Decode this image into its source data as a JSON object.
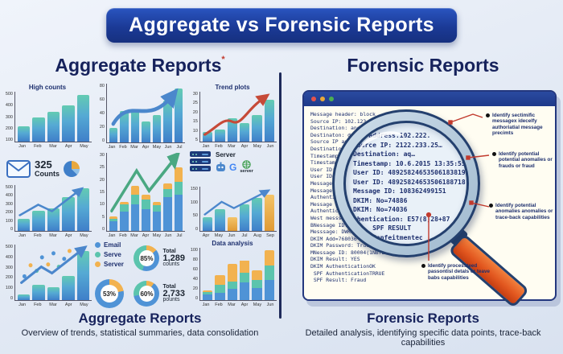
{
  "banner": {
    "title": "Aggregate vs Forensic Reports"
  },
  "left": {
    "heading": "Aggregate Reports",
    "heading_mark": "*",
    "stat": {
      "value": "325",
      "label": "Counts"
    },
    "server_panel": {
      "label_top": "Server",
      "label_bottom": "server"
    },
    "legend": [
      {
        "label": "Email",
        "color": "#4f93d6"
      },
      {
        "label": "Serve",
        "color": "#5bc4ad"
      },
      {
        "label": "Server",
        "color": "#f2b24f"
      }
    ],
    "donuts": [
      {
        "pct": "85%",
        "note_title": "Total",
        "note_value": "1,289",
        "note_unit": "counts"
      },
      {
        "pct": "53%"
      },
      {
        "pct": "60%",
        "note_title": "Total",
        "note_value": "2,733",
        "note_unit": "pounts"
      }
    ],
    "caption": {
      "title": "Aggregate Reports",
      "subtitle": "Overview of trends, statistical summaries, data consolidation"
    }
  },
  "chart_data": [
    {
      "type": "bar",
      "title": "High counts",
      "categories": [
        "Jan",
        "Feb",
        "Mar",
        "Apr",
        "May"
      ],
      "values": [
        160,
        250,
        310,
        375,
        490
      ],
      "yticks": [
        500,
        400,
        300,
        200,
        100
      ],
      "ymax": 520
    },
    {
      "type": "bar",
      "title": "",
      "categories": [
        "Jan",
        "Feb",
        "Mar",
        "Apr",
        "May",
        "Jun",
        "Jul"
      ],
      "values": [
        21,
        45,
        47,
        30,
        40,
        60,
        78
      ],
      "yticks": [
        80,
        60,
        40,
        20,
        0
      ],
      "ymax": 85,
      "overlay": "blue-arrow"
    },
    {
      "type": "bar",
      "title": "Trend plots",
      "categories": [
        "Jan",
        "Feb",
        "Mar",
        "Apr",
        "May",
        "Jun"
      ],
      "values": [
        6,
        8,
        15,
        12,
        17,
        27
      ],
      "yticks": [
        30,
        25,
        20,
        15,
        10,
        5
      ],
      "ymax": 32,
      "overlay": "red-arrow"
    },
    {
      "type": "bar",
      "title": "",
      "categories": [
        "Jan",
        "Feb",
        "Mar",
        "Apr",
        "May"
      ],
      "values": [
        140,
        225,
        255,
        380,
        480
      ],
      "yticks": [
        500,
        400,
        300,
        200,
        100,
        0
      ],
      "ymax": 520,
      "overlay": "blue-line"
    },
    {
      "type": "stacked-bar",
      "title": "",
      "categories": [
        "Jan",
        "Feb",
        "Mar",
        "Apr",
        "May",
        "Jun",
        "Jul"
      ],
      "stacks": [
        [
          4,
          1,
          1
        ],
        [
          8,
          3,
          1
        ],
        [
          11,
          4,
          3.5
        ],
        [
          9,
          4,
          2
        ],
        [
          8,
          2.5,
          1.5
        ],
        [
          14,
          3,
          2.5
        ],
        [
          15,
          5,
          6
        ]
      ],
      "stack_colors": [
        "#4f93d6",
        "#5bc4ad",
        "#f2b24f"
      ],
      "yticks": [
        30,
        25,
        20,
        15,
        10,
        5,
        0
      ],
      "ymax": 32,
      "overlay": "green-arrow"
    },
    {
      "type": "bar",
      "title": "",
      "categories": [
        "Apr",
        "May",
        "Jun",
        "Jul",
        "Aug",
        "Sep"
      ],
      "values": [
        50,
        80,
        50,
        95,
        120,
        130
      ],
      "bar_colors": [
        "",
        "",
        "linear-gradient(to top,#e09a35,#f4c468)",
        "",
        "",
        "linear-gradient(to top,#e09a35,#f4c468)"
      ],
      "yticks": [
        150,
        100,
        50,
        0
      ],
      "ymax": 160,
      "overlay": "blue-arrow"
    },
    {
      "type": "bar",
      "title": "",
      "categories": [
        "Jan",
        "Feb",
        "Mar",
        "Apr",
        "May"
      ],
      "values": [
        50,
        140,
        120,
        225,
        460
      ],
      "yticks": [
        500,
        400,
        300,
        200,
        100,
        0
      ],
      "ymax": 520,
      "overlay": "scatter-arrow"
    },
    {
      "type": "stacked-bar",
      "title": "Data analysis",
      "categories": [
        "Jan",
        "Feb",
        "Mar",
        "Apr",
        "May",
        "Jun"
      ],
      "stacks": [
        [
          12,
          4,
          4
        ],
        [
          15,
          15,
          20
        ],
        [
          22,
          15,
          35
        ],
        [
          35,
          20,
          25
        ],
        [
          25,
          15,
          20
        ],
        [
          40,
          30,
          30
        ]
      ],
      "stack_colors": [
        "#4f93d6",
        "#5bc4ad",
        "#f2b24f"
      ],
      "yticks": [
        100,
        80,
        60,
        40,
        20,
        0
      ],
      "ymax": 105
    }
  ],
  "forensic": {
    "heading": "Forensic Reports",
    "window_lines": [
      "Message header: block",
      "Source IP: 102.123",
      "Destination: and",
      "Destinaton: dat",
      "Source IP addr",
      "Destination:",
      "Timestamp: 26",
      "Timestamp: dr",
      "User ID: 5533",
      "User ID: 5532",
      "Message ID: N",
      "Message ID: NN",
      "Authentication",
      "Message ID: Ned",
      "Authentication:",
      "West messsage hrod",
      "BNessage ID: 100556",
      "Messsage: DWKID5140113",
      "DKIM Add=768036",
      "DKIM Password: True",
      "MNessage ID: 80004(1NB7EA2)",
      "DKIM Result: YES",
      "DKIM AuthenticationOK",
      " SPF AuthenticationTRRUE",
      " SPF Result: Fraud"
    ],
    "lens_lines": [
      "rce address.102.222.",
      "Source IP: 2122.233.25…",
      "Destination: aq…",
      "Timestamp: 10.6.2015 13:35:55",
      "User ID: 48925824653506183819",
      "User ID: 48925824653506188718",
      "Message ID: 108362499151",
      "DKIM: No=74886",
      "DKIM: No=74036",
      "thentication: E57(8)28+87",
      "     SPF RESULT",
      "   : Confeitmentec"
    ],
    "annotations": [
      {
        "text": "Identify sectimific messagex idecelfy authoriatial message precimts"
      },
      {
        "text": "Identify potential potential anomalies or frauds or fraud"
      },
      {
        "text": "Identify potential anomalies anomalies or trace-back capabilities"
      },
      {
        "text": "Identify processteed passontisl detals or teave babs capabilities"
      }
    ],
    "caption": {
      "title": "Forensic Reports",
      "subtitle": "Detailed analysis, identifying specific data points, trace-back capabilities"
    }
  },
  "colors": {
    "banner_bg": "#1b3a96",
    "heading_text": "#16225c",
    "bar_blue": "#4f93d6",
    "bar_teal": "#5bc4ad",
    "bar_orange": "#f2b24f",
    "arrow_blue": "#4b87cc",
    "arrow_red": "#c64a38",
    "arrow_green": "#4aa882",
    "annotation_red": "#c23b2e",
    "window_bg": "#fffdf2",
    "window_bar": "#1e3a8a",
    "mono_text": "#1d2f6e"
  }
}
